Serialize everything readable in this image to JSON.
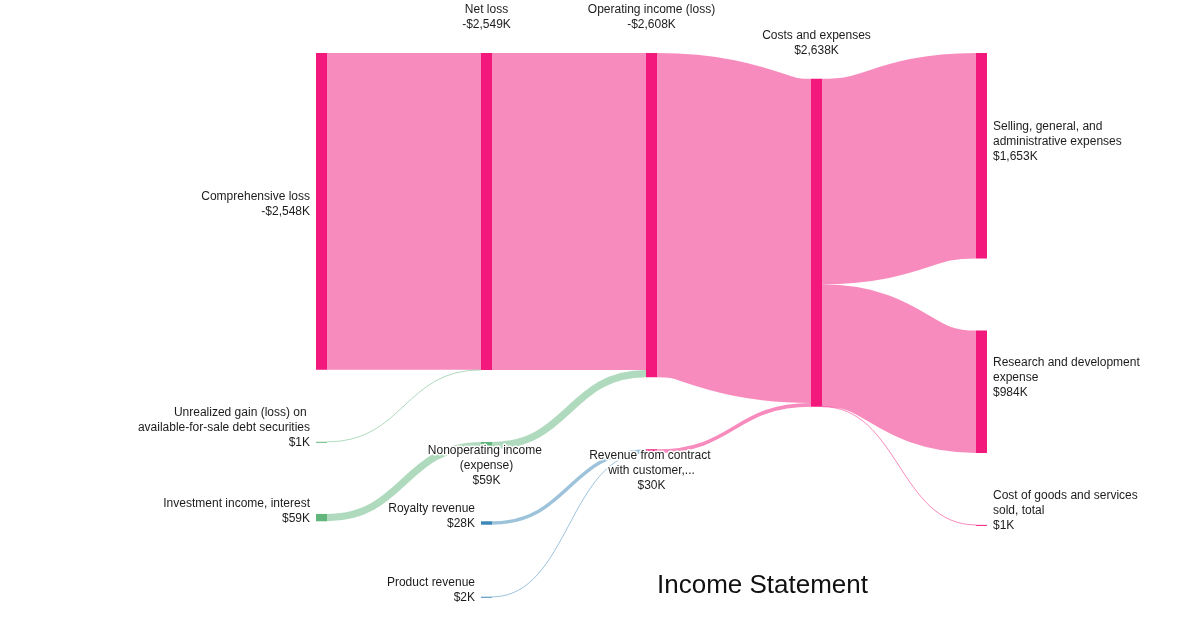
{
  "chart_data": {
    "type": "other",
    "title": "Income Statement",
    "categories": [
      "Comprehensive loss",
      "Unrealized gain (loss) on available-for-sale debt securities",
      "Investment income, interest",
      "Net loss",
      "Nonoperating income (expense)",
      "Royalty revenue",
      "Product revenue",
      "Operating income (loss)",
      "Revenue from contract with customer,...",
      "Costs and expenses",
      "Selling, general, and administrative expenses",
      "Research and development expense",
      "Cost of goods and services sold, total"
    ],
    "values": [
      -2548,
      1,
      59,
      -2549,
      59,
      28,
      2,
      -2608,
      30,
      2638,
      1653,
      984,
      1
    ],
    "value_labels": [
      "-$2,548K",
      "$1K",
      "$59K",
      "-$2,549K",
      "$59K",
      "$28K",
      "$2K",
      "-$2,608K",
      "$30K",
      "$2,638K",
      "$1,653K",
      "$984K",
      "$1K"
    ],
    "colors": [
      "#f2187c",
      "#62b67c",
      "#62b67c",
      "#f2187c",
      "#62b67c",
      "#3b88b8",
      "#3b88b8",
      "#f2187c",
      "#f2187c",
      "#f2187c",
      "#f2187c",
      "#f2187c",
      "#f2187c"
    ],
    "cells": [
      [
        null,
        null,
        null,
        true,
        null,
        null,
        null,
        null,
        null,
        null,
        null,
        null,
        null
      ],
      [
        null,
        null,
        null,
        true,
        null,
        null,
        null,
        null,
        null,
        null,
        null,
        null,
        null
      ],
      [
        null,
        null,
        null,
        null,
        true,
        null,
        null,
        null,
        null,
        null,
        null,
        null,
        null
      ],
      [
        null,
        null,
        null,
        null,
        null,
        null,
        null,
        true,
        null,
        null,
        null,
        null,
        null
      ],
      [
        null,
        null,
        null,
        null,
        null,
        null,
        null,
        true,
        null,
        null,
        null,
        null,
        null
      ],
      [
        null,
        null,
        null,
        null,
        null,
        null,
        null,
        null,
        true,
        null,
        null,
        null,
        null
      ],
      [
        null,
        null,
        null,
        null,
        null,
        null,
        null,
        null,
        true,
        null,
        null,
        null,
        null
      ],
      [
        null,
        null,
        null,
        null,
        null,
        null,
        null,
        null,
        null,
        true,
        null,
        null,
        null
      ],
      [
        null,
        null,
        null,
        null,
        null,
        null,
        null,
        null,
        null,
        true,
        null,
        null,
        null
      ],
      [
        null,
        null,
        null,
        null,
        null,
        null,
        null,
        null,
        null,
        null,
        true,
        true,
        true
      ],
      [
        null,
        null,
        null,
        null,
        null,
        null,
        null,
        null,
        null,
        null,
        null,
        null,
        null
      ],
      [
        null,
        null,
        null,
        null,
        null,
        null,
        null,
        null,
        null,
        null,
        null,
        null,
        null
      ],
      [
        null,
        null,
        null,
        null,
        null,
        null,
        null,
        null,
        null,
        null,
        null,
        null,
        null
      ]
    ]
  }
}
